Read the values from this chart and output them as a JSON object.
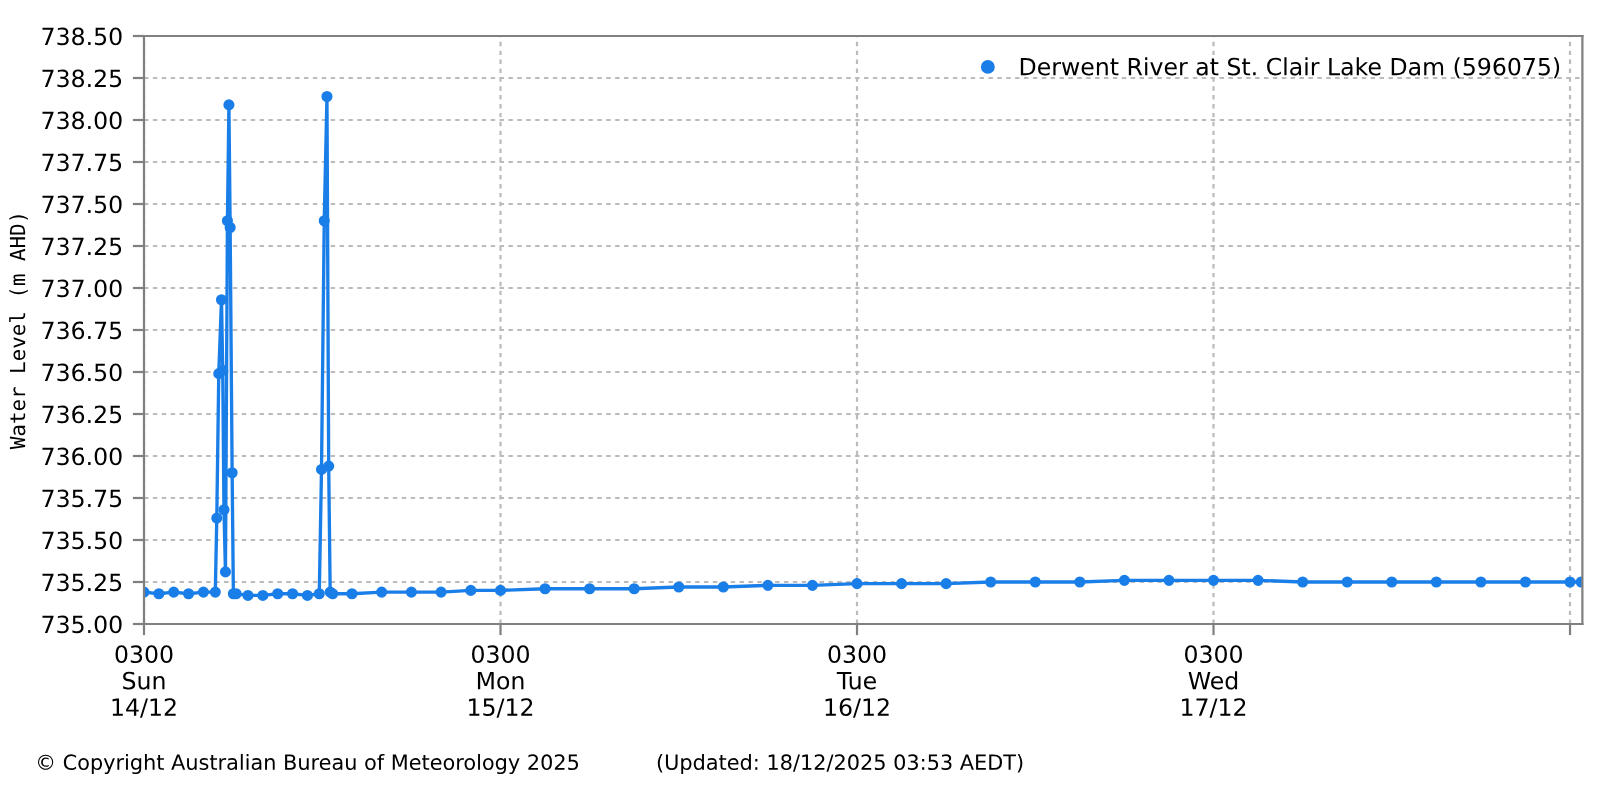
{
  "chart_data": {
    "type": "line",
    "ylabel": "Water Level (m AHD)",
    "x": [
      "2025-12-14T03:00",
      "2025-12-14T04:00",
      "2025-12-14T05:00",
      "2025-12-14T06:00",
      "2025-12-14T07:00",
      "2025-12-14T07:48",
      "2025-12-14T07:54",
      "2025-12-14T08:02",
      "2025-12-14T08:13",
      "2025-12-14T08:18",
      "2025-12-14T08:23",
      "2025-12-14T08:29",
      "2025-12-14T08:37",
      "2025-12-14T08:43",
      "2025-12-14T08:48",
      "2025-12-14T08:56",
      "2025-12-14T09:01",
      "2025-12-14T09:12",
      "2025-12-14T10:00",
      "2025-12-14T11:00",
      "2025-12-14T12:00",
      "2025-12-14T13:00",
      "2025-12-14T14:00",
      "2025-12-14T14:48",
      "2025-12-14T14:57",
      "2025-12-14T15:08",
      "2025-12-14T15:19",
      "2025-12-14T15:26",
      "2025-12-14T15:32",
      "2025-12-14T15:42",
      "2025-12-14T17:00",
      "2025-12-14T19:00",
      "2025-12-14T21:00",
      "2025-12-14T23:00",
      "2025-12-15T01:00",
      "2025-12-15T03:00",
      "2025-12-15T06:00",
      "2025-12-15T09:00",
      "2025-12-15T12:00",
      "2025-12-15T15:00",
      "2025-12-15T18:00",
      "2025-12-15T21:00",
      "2025-12-16T00:00",
      "2025-12-16T03:00",
      "2025-12-16T06:00",
      "2025-12-16T09:00",
      "2025-12-16T12:00",
      "2025-12-16T15:00",
      "2025-12-16T18:00",
      "2025-12-16T21:00",
      "2025-12-17T00:00",
      "2025-12-17T03:00",
      "2025-12-17T06:00",
      "2025-12-17T09:00",
      "2025-12-17T12:00",
      "2025-12-17T15:00",
      "2025-12-17T18:00",
      "2025-12-17T21:00",
      "2025-12-18T00:00",
      "2025-12-18T03:00",
      "2025-12-18T03:45"
    ],
    "series": [
      {
        "name": "Derwent River at St. Clair Lake Dam (596075)",
        "color": "#1a7ee8",
        "values": [
          735.19,
          735.18,
          735.19,
          735.18,
          735.19,
          735.19,
          735.63,
          736.49,
          736.93,
          736.51,
          735.68,
          735.31,
          737.4,
          738.09,
          737.36,
          735.9,
          735.18,
          735.18,
          735.17,
          735.17,
          735.18,
          735.18,
          735.17,
          735.18,
          735.92,
          737.4,
          738.14,
          735.94,
          735.19,
          735.18,
          735.18,
          735.19,
          735.19,
          735.19,
          735.2,
          735.2,
          735.21,
          735.21,
          735.21,
          735.22,
          735.22,
          735.23,
          735.23,
          735.24,
          735.24,
          735.24,
          735.25,
          735.25,
          735.25,
          735.26,
          735.26,
          735.26,
          735.26,
          735.25,
          735.25,
          735.25,
          735.25,
          735.25,
          735.25,
          735.25,
          735.25
        ]
      }
    ],
    "xlim": [
      "2025-12-14T03:00",
      "2025-12-18T03:50"
    ],
    "xticks": [
      {
        "value": "2025-12-14T03:00",
        "label": "0300\nSun\n14/12"
      },
      {
        "value": "2025-12-15T03:00",
        "label": "0300\nMon\n15/12"
      },
      {
        "value": "2025-12-16T03:00",
        "label": "0300\nTue\n16/12"
      },
      {
        "value": "2025-12-17T03:00",
        "label": "0300\nWed\n17/12"
      },
      {
        "value": "2025-12-18T03:00",
        "label": null
      }
    ],
    "ylim": [
      735.0,
      738.5
    ],
    "yticks": [
      {
        "value": 735.0,
        "label": "735.00"
      },
      {
        "value": 735.25,
        "label": "735.25"
      },
      {
        "value": 735.5,
        "label": "735.50"
      },
      {
        "value": 735.75,
        "label": "735.75"
      },
      {
        "value": 736.0,
        "label": "736.00"
      },
      {
        "value": 736.25,
        "label": "736.25"
      },
      {
        "value": 736.5,
        "label": "736.50"
      },
      {
        "value": 736.75,
        "label": "736.75"
      },
      {
        "value": 737.0,
        "label": "737.00"
      },
      {
        "value": 737.25,
        "label": "737.25"
      },
      {
        "value": 737.5,
        "label": "737.50"
      },
      {
        "value": 737.75,
        "label": "737.75"
      },
      {
        "value": 738.0,
        "label": "738.00"
      },
      {
        "value": 738.25,
        "label": "738.25"
      },
      {
        "value": 738.5,
        "label": "738.50"
      }
    ],
    "grid": true,
    "legend": "top right",
    "marker": "circle",
    "line_style": "solid",
    "annotations": [
      "© Copyright Australian Bureau of Meteorology 2025",
      "(Updated: 18/12/2025 03:53 AEDT)"
    ]
  }
}
